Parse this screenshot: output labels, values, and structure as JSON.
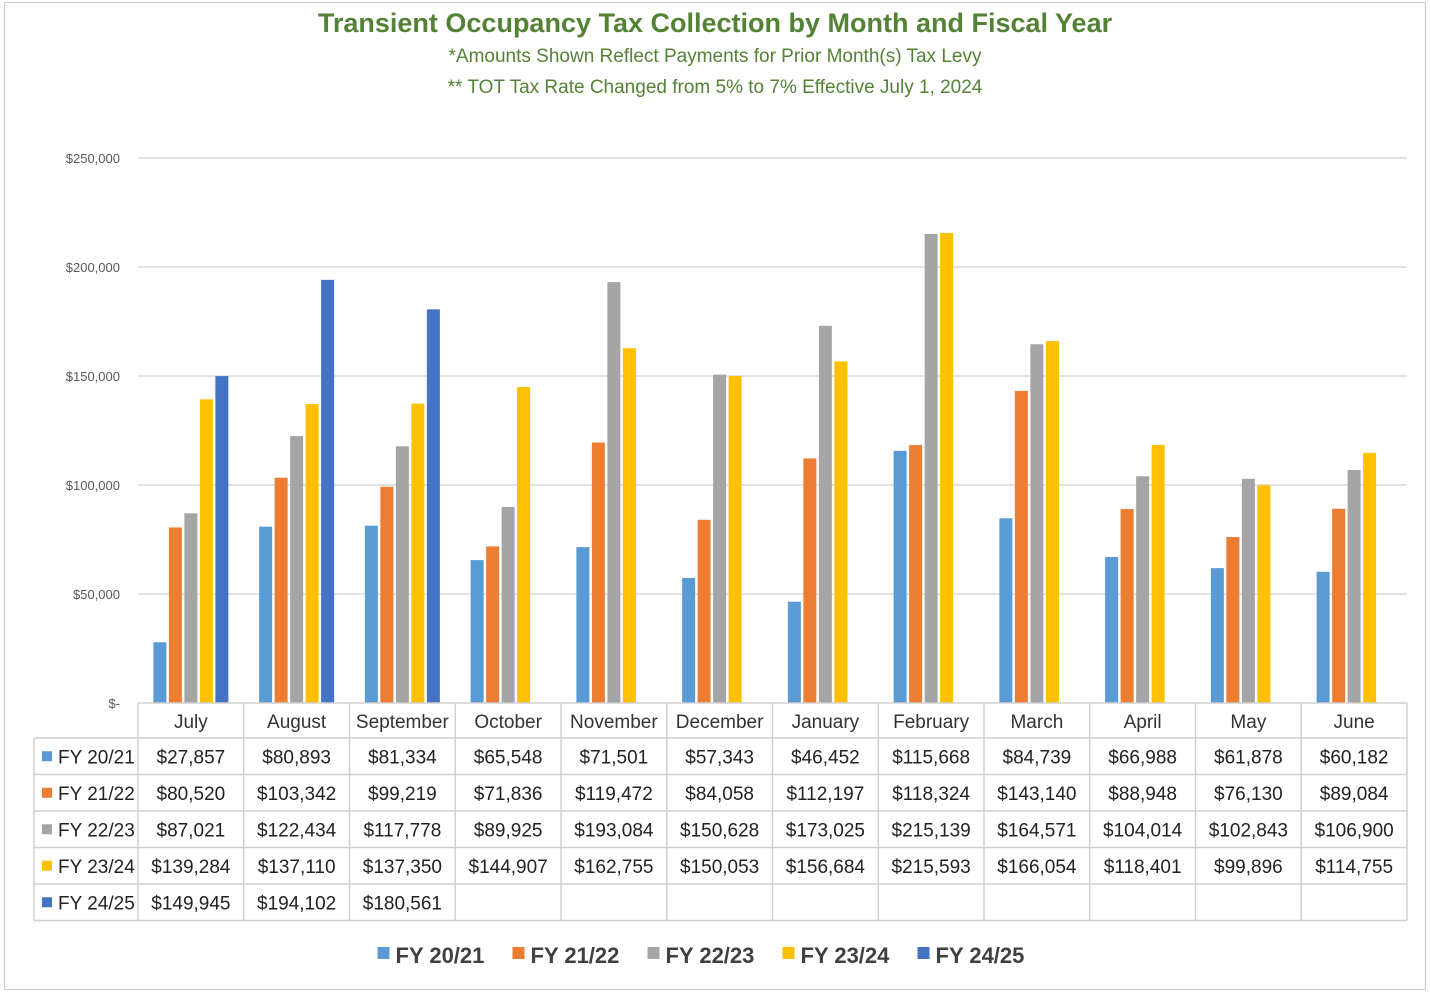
{
  "title": "Transient Occupancy Tax Collection by Month and Fiscal Year",
  "subtitle1": "*Amounts Shown Reflect Payments for Prior Month(s) Tax Levy",
  "subtitle2": "** TOT Tax Rate Changed from 5% to 7% Effective July 1, 2024",
  "chart_data": {
    "type": "bar",
    "title": "Transient Occupancy Tax Collection by Month and Fiscal Year",
    "xlabel": "",
    "ylabel": "",
    "ylim": [
      0,
      250000
    ],
    "yticks": [
      0,
      50000,
      100000,
      150000,
      200000,
      250000
    ],
    "ytick_labels": [
      "$-",
      "$50,000",
      "$100,000",
      "$150,000",
      "$200,000",
      "$250,000"
    ],
    "grid": true,
    "legend": "bottom",
    "categories": [
      "July",
      "August",
      "September",
      "October",
      "November",
      "December",
      "January",
      "February",
      "March",
      "April",
      "May",
      "June"
    ],
    "series": [
      {
        "name": "FY 20/21",
        "color": "#5B9BD5",
        "values": [
          27857,
          80893,
          81334,
          65548,
          71501,
          57343,
          46452,
          115668,
          84739,
          66988,
          61878,
          60182
        ],
        "labels": [
          "$27,857",
          "$80,893",
          "$81,334",
          "$65,548",
          "$71,501",
          "$57,343",
          "$46,452",
          "$115,668",
          "$84,739",
          "$66,988",
          "$61,878",
          "$60,182"
        ]
      },
      {
        "name": "FY 21/22",
        "color": "#ED7D31",
        "values": [
          80520,
          103342,
          99219,
          71836,
          119472,
          84058,
          112197,
          118324,
          143140,
          88948,
          76130,
          89084
        ],
        "labels": [
          "$80,520",
          "$103,342",
          "$99,219",
          "$71,836",
          "$119,472",
          "$84,058",
          "$112,197",
          "$118,324",
          "$143,140",
          "$88,948",
          "$76,130",
          "$89,084"
        ]
      },
      {
        "name": "FY 22/23",
        "color": "#A5A5A5",
        "values": [
          87021,
          122434,
          117778,
          89925,
          193084,
          150628,
          173025,
          215139,
          164571,
          104014,
          102843,
          106900
        ],
        "labels": [
          "$87,021",
          "$122,434",
          "$117,778",
          "$89,925",
          "$193,084",
          "$150,628",
          "$173,025",
          "$215,139",
          "$164,571",
          "$104,014",
          "$102,843",
          "$106,900"
        ]
      },
      {
        "name": "FY 23/24",
        "color": "#FFC000",
        "values": [
          139284,
          137110,
          137350,
          144907,
          162755,
          150053,
          156684,
          215593,
          166054,
          118401,
          99896,
          114755
        ],
        "labels": [
          "$139,284",
          "$137,110",
          "$137,350",
          "$144,907",
          "$162,755",
          "$150,053",
          "$156,684",
          "$215,593",
          "$166,054",
          "$118,401",
          "$99,896",
          "$114,755"
        ]
      },
      {
        "name": "FY 24/25",
        "color": "#4472C4",
        "values": [
          149945,
          194102,
          180561,
          null,
          null,
          null,
          null,
          null,
          null,
          null,
          null,
          null
        ],
        "labels": [
          "$149,945",
          "$194,102",
          "$180,561",
          "",
          "",
          "",
          "",
          "",
          "",
          "",
          "",
          ""
        ]
      }
    ]
  }
}
